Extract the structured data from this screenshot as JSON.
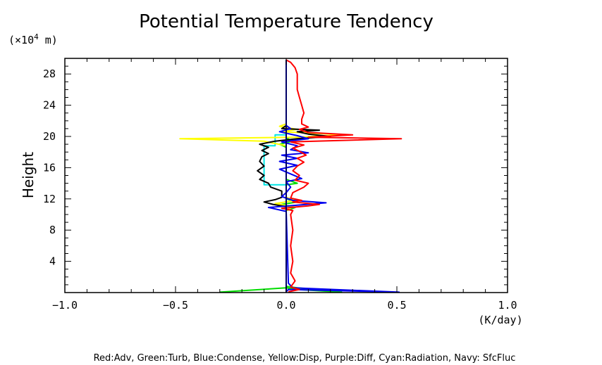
{
  "chart_data": {
    "type": "line",
    "title": "Potential Temperature Tendency",
    "xlabel": "(K/day)",
    "ylabel": "Height",
    "y_unit_label_prefix": "(×10",
    "y_unit_label_exp": "4",
    "y_unit_label_suffix": " m)",
    "footer": "Red:Adv, Green:Turb, Blue:Condense, Yellow:Disp, Purple:Diff, Cyan:Radiation, Navy: SfcFluc",
    "xlim": [
      -1.0,
      1.0
    ],
    "ylim": [
      0,
      30
    ],
    "x_ticks": [
      {
        "value": -1.0,
        "label": "−1.0"
      },
      {
        "value": -0.5,
        "label": "−0.5"
      },
      {
        "value": 0.0,
        "label": "0.0"
      },
      {
        "value": 0.5,
        "label": "0.5"
      },
      {
        "value": 1.0,
        "label": "1.0"
      }
    ],
    "y_ticks": [
      {
        "value": 4,
        "label": "4"
      },
      {
        "value": 8,
        "label": "8"
      },
      {
        "value": 12,
        "label": "12"
      },
      {
        "value": 16,
        "label": "16"
      },
      {
        "value": 20,
        "label": "20"
      },
      {
        "value": 24,
        "label": "24"
      },
      {
        "value": 28,
        "label": "28"
      }
    ],
    "series": [
      {
        "id": "cyan",
        "color": "#00e5e5",
        "points": [
          [
            0,
            0.1
          ],
          [
            0,
            13.8
          ],
          [
            -0.1,
            13.8
          ],
          [
            -0.1,
            18.8
          ],
          [
            -0.05,
            18.8
          ],
          [
            -0.05,
            20.2
          ],
          [
            0,
            20.2
          ],
          [
            0,
            29.8
          ]
        ]
      },
      {
        "id": "green",
        "color": "#00dd00",
        "points": [
          [
            -0.3,
            0.05
          ],
          [
            0,
            0.6
          ],
          [
            0.05,
            0.4
          ],
          [
            0.25,
            0.05
          ],
          [
            0.05,
            0.6
          ],
          [
            0,
            0.8
          ],
          [
            0,
            10.5
          ],
          [
            0.04,
            10.9
          ],
          [
            -0.02,
            11.3
          ],
          [
            0.05,
            11.6
          ],
          [
            0,
            12.0
          ],
          [
            0,
            13.8
          ],
          [
            0.05,
            14.0
          ],
          [
            0,
            14.5
          ],
          [
            0,
            18.6
          ],
          [
            -0.03,
            19.0
          ],
          [
            0.03,
            19.4
          ],
          [
            0,
            19.8
          ],
          [
            0,
            29.8
          ]
        ]
      },
      {
        "id": "yellow",
        "color": "#ffff00",
        "points": [
          [
            0,
            0.1
          ],
          [
            0,
            10.5
          ],
          [
            0.03,
            11.0
          ],
          [
            -0.05,
            11.4
          ],
          [
            0.04,
            11.8
          ],
          [
            0,
            12.2
          ],
          [
            0,
            18.8
          ],
          [
            -0.1,
            19.4
          ],
          [
            -0.48,
            19.7
          ],
          [
            0.05,
            19.9
          ],
          [
            0.27,
            20.2
          ],
          [
            -0.02,
            20.6
          ],
          [
            0.05,
            20.9
          ],
          [
            -0.03,
            21.3
          ],
          [
            0,
            21.6
          ],
          [
            0,
            29.8
          ]
        ]
      },
      {
        "id": "black",
        "color": "#000000",
        "points": [
          [
            0,
            0.1
          ],
          [
            0,
            11.0
          ],
          [
            -0.06,
            11.3
          ],
          [
            -0.1,
            11.6
          ],
          [
            -0.05,
            11.9
          ],
          [
            -0.02,
            12.2
          ],
          [
            -0.02,
            13.0
          ],
          [
            -0.07,
            13.5
          ],
          [
            -0.08,
            14.0
          ],
          [
            -0.12,
            14.5
          ],
          [
            -0.1,
            15.0
          ],
          [
            -0.13,
            15.6
          ],
          [
            -0.1,
            16.2
          ],
          [
            -0.12,
            16.8
          ],
          [
            -0.11,
            17.4
          ],
          [
            -0.08,
            17.8
          ],
          [
            -0.11,
            18.2
          ],
          [
            -0.08,
            18.6
          ],
          [
            -0.12,
            19.0
          ],
          [
            -0.05,
            19.4
          ],
          [
            0.05,
            19.7
          ],
          [
            0.2,
            20.0
          ],
          [
            0.1,
            20.3
          ],
          [
            0.05,
            20.6
          ],
          [
            0.15,
            20.8
          ],
          [
            -0.02,
            21.0
          ],
          [
            0,
            21.4
          ],
          [
            0,
            29.8
          ]
        ]
      },
      {
        "id": "blue",
        "color": "#0000ee",
        "points": [
          [
            0,
            0.1
          ],
          [
            0.01,
            0.4
          ],
          [
            0.51,
            0.05
          ],
          [
            0.03,
            0.6
          ],
          [
            0.01,
            1.2
          ],
          [
            0,
            10.4
          ],
          [
            -0.08,
            10.9
          ],
          [
            0.05,
            11.2
          ],
          [
            0.18,
            11.5
          ],
          [
            0.03,
            11.8
          ],
          [
            -0.02,
            12.3
          ],
          [
            0,
            12.8
          ],
          [
            0.02,
            13.5
          ],
          [
            0,
            14.2
          ],
          [
            0.07,
            14.6
          ],
          [
            0.02,
            15.2
          ],
          [
            -0.03,
            15.8
          ],
          [
            0.05,
            16.3
          ],
          [
            -0.03,
            16.8
          ],
          [
            0.05,
            17.2
          ],
          [
            -0.02,
            17.6
          ],
          [
            0.1,
            17.9
          ],
          [
            0.02,
            18.3
          ],
          [
            0.05,
            18.8
          ],
          [
            -0.02,
            19.3
          ],
          [
            0.1,
            19.7
          ],
          [
            0.05,
            20.1
          ],
          [
            -0.03,
            20.6
          ],
          [
            0.02,
            21.0
          ],
          [
            0,
            21.4
          ],
          [
            0,
            29.8
          ]
        ]
      },
      {
        "id": "red",
        "color": "#ff0000",
        "points": [
          [
            0.01,
            0.1
          ],
          [
            0.06,
            0.4
          ],
          [
            0.02,
            0.7
          ],
          [
            0.04,
            1.5
          ],
          [
            0.02,
            2.5
          ],
          [
            0.03,
            4.0
          ],
          [
            0.02,
            6.0
          ],
          [
            0.03,
            8.0
          ],
          [
            0.02,
            10.0
          ],
          [
            0.03,
            10.5
          ],
          [
            -0.02,
            10.8
          ],
          [
            0.1,
            11.1
          ],
          [
            0.15,
            11.3
          ],
          [
            0.03,
            11.6
          ],
          [
            0.07,
            11.8
          ],
          [
            0.02,
            12.1
          ],
          [
            0.03,
            12.8
          ],
          [
            0.08,
            13.5
          ],
          [
            0.1,
            14.0
          ],
          [
            0.04,
            14.4
          ],
          [
            0.06,
            15.0
          ],
          [
            0.03,
            15.6
          ],
          [
            0.05,
            16.2
          ],
          [
            0.08,
            16.7
          ],
          [
            0.05,
            17.2
          ],
          [
            0.09,
            17.6
          ],
          [
            0.06,
            18.1
          ],
          [
            0.03,
            18.5
          ],
          [
            0.08,
            18.9
          ],
          [
            0.02,
            19.3
          ],
          [
            0.52,
            19.7
          ],
          [
            0.1,
            19.9
          ],
          [
            0.3,
            20.2
          ],
          [
            0.1,
            20.5
          ],
          [
            0.06,
            20.9
          ],
          [
            0.1,
            21.2
          ],
          [
            0.07,
            21.6
          ],
          [
            0.07,
            22.2
          ],
          [
            0.08,
            23.0
          ],
          [
            0.07,
            24.0
          ],
          [
            0.06,
            25.0
          ],
          [
            0.05,
            26.0
          ],
          [
            0.05,
            27.0
          ],
          [
            0.05,
            28.0
          ],
          [
            0.04,
            28.8
          ],
          [
            0.02,
            29.5
          ],
          [
            0,
            29.8
          ]
        ]
      },
      {
        "id": "navy",
        "color": "#000066",
        "points": [
          [
            0,
            0
          ],
          [
            0,
            29.8
          ]
        ]
      }
    ]
  }
}
